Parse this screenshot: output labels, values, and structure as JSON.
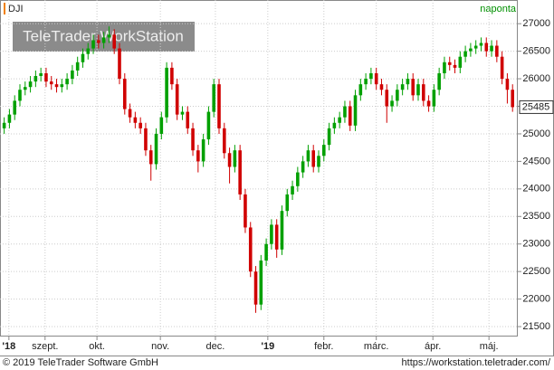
{
  "chart_data": {
    "type": "candlestick",
    "symbol": "DJI",
    "interval": "naponta",
    "watermark": "TeleTrader WorkStation",
    "footer_left": "© 2019 TeleTrader Software GmbH",
    "footer_right": "https://workstation.teletrader.com/",
    "up_color": "#00a000",
    "down_color": "#d00000",
    "grid": true,
    "xlim": [
      -0.8,
      98
    ],
    "ylim": [
      21320,
      27430
    ],
    "xticks": [
      {
        "value": 0.9,
        "label": "'18"
      },
      {
        "value": 7.8,
        "label": "szept."
      },
      {
        "value": 17.7,
        "label": "okt."
      },
      {
        "value": 29.8,
        "label": "nov."
      },
      {
        "value": 40.3,
        "label": "dec."
      },
      {
        "value": 50.3,
        "label": "'19"
      },
      {
        "value": 61,
        "label": "febr."
      },
      {
        "value": 71,
        "label": "márc."
      },
      {
        "value": 81.8,
        "label": "ápr."
      },
      {
        "value": 92.5,
        "label": "máj."
      }
    ],
    "yticks": [
      21500,
      22000,
      22500,
      23000,
      23500,
      24000,
      24500,
      25000,
      25500,
      26000,
      26500,
      27000
    ],
    "candles": [
      [
        25100,
        25300,
        25000,
        25200
      ],
      [
        25200,
        25450,
        25100,
        25350
      ],
      [
        25350,
        25700,
        25250,
        25600
      ],
      [
        25600,
        25900,
        25500,
        25800
      ],
      [
        25800,
        25950,
        25700,
        25850
      ],
      [
        25850,
        26050,
        25750,
        25950
      ],
      [
        25950,
        26150,
        25850,
        26050
      ],
      [
        26050,
        26200,
        25950,
        26100
      ],
      [
        26100,
        26200,
        25850,
        25950
      ],
      [
        25950,
        26050,
        25800,
        25900
      ],
      [
        25900,
        26000,
        25750,
        25850
      ],
      [
        25850,
        26000,
        25750,
        25900
      ],
      [
        25900,
        26100,
        25800,
        26000
      ],
      [
        26000,
        26250,
        25900,
        26150
      ],
      [
        26150,
        26400,
        26050,
        26300
      ],
      [
        26300,
        26550,
        26200,
        26450
      ],
      [
        26450,
        26650,
        26350,
        26550
      ],
      [
        26550,
        26800,
        26450,
        26700
      ],
      [
        26700,
        26800,
        26550,
        26650
      ],
      [
        26650,
        26850,
        26550,
        26750
      ],
      [
        26750,
        26950,
        26650,
        26800
      ],
      [
        26800,
        26900,
        26450,
        26550
      ],
      [
        26550,
        26650,
        25900,
        26000
      ],
      [
        26000,
        26100,
        25350,
        25450
      ],
      [
        25450,
        25550,
        25200,
        25300
      ],
      [
        25300,
        25400,
        25100,
        25200
      ],
      [
        25200,
        25300,
        25000,
        25100
      ],
      [
        25100,
        25200,
        24600,
        24700
      ],
      [
        24700,
        24800,
        24150,
        24450
      ],
      [
        24450,
        25100,
        24350,
        25000
      ],
      [
        25000,
        25400,
        24900,
        25300
      ],
      [
        25300,
        26300,
        25200,
        26200
      ],
      [
        26200,
        26300,
        25800,
        25900
      ],
      [
        25900,
        26000,
        25250,
        25350
      ],
      [
        25350,
        25500,
        25250,
        25400
      ],
      [
        25400,
        25500,
        25000,
        25100
      ],
      [
        25100,
        25200,
        24600,
        24700
      ],
      [
        24700,
        24800,
        24300,
        24500
      ],
      [
        24500,
        25000,
        24400,
        24900
      ],
      [
        24900,
        25500,
        24800,
        25400
      ],
      [
        25400,
        26000,
        25300,
        25900
      ],
      [
        25900,
        26000,
        25000,
        25100
      ],
      [
        25100,
        25200,
        24550,
        24650
      ],
      [
        24650,
        24750,
        24100,
        24400
      ],
      [
        24400,
        24800,
        24300,
        24700
      ],
      [
        24700,
        24800,
        23800,
        23900
      ],
      [
        23900,
        24000,
        23200,
        23300
      ],
      [
        23300,
        23400,
        22400,
        22500
      ],
      [
        22500,
        22600,
        21750,
        21900
      ],
      [
        21900,
        22800,
        21800,
        22700
      ],
      [
        22700,
        23100,
        22600,
        23000
      ],
      [
        23000,
        23450,
        22900,
        23350
      ],
      [
        23350,
        23450,
        22750,
        22900
      ],
      [
        22900,
        23700,
        22800,
        23600
      ],
      [
        23600,
        24000,
        23500,
        23900
      ],
      [
        23900,
        24150,
        23800,
        24050
      ],
      [
        24050,
        24400,
        23950,
        24300
      ],
      [
        24300,
        24600,
        24200,
        24500
      ],
      [
        24500,
        24800,
        24400,
        24700
      ],
      [
        24700,
        24800,
        24300,
        24400
      ],
      [
        24400,
        24700,
        24300,
        24600
      ],
      [
        24600,
        24900,
        24500,
        24800
      ],
      [
        24800,
        25200,
        24700,
        25100
      ],
      [
        25100,
        25300,
        25000,
        25200
      ],
      [
        25200,
        25400,
        25100,
        25300
      ],
      [
        25300,
        25600,
        25200,
        25500
      ],
      [
        25500,
        25600,
        25050,
        25150
      ],
      [
        25150,
        25800,
        25050,
        25700
      ],
      [
        25700,
        26000,
        25600,
        25900
      ],
      [
        25900,
        26100,
        25800,
        26000
      ],
      [
        26000,
        26200,
        25900,
        26100
      ],
      [
        26100,
        26200,
        25800,
        25900
      ],
      [
        25900,
        26000,
        25700,
        25800
      ],
      [
        25800,
        25900,
        25200,
        25500
      ],
      [
        25500,
        25700,
        25400,
        25600
      ],
      [
        25600,
        25900,
        25500,
        25800
      ],
      [
        25800,
        26000,
        25700,
        25900
      ],
      [
        25900,
        26100,
        25800,
        26000
      ],
      [
        26000,
        26100,
        25600,
        25700
      ],
      [
        25700,
        26000,
        25600,
        25900
      ],
      [
        25900,
        26000,
        25500,
        25600
      ],
      [
        25600,
        25700,
        25400,
        25500
      ],
      [
        25500,
        25900,
        25400,
        25800
      ],
      [
        25800,
        26200,
        25700,
        26100
      ],
      [
        26100,
        26400,
        26000,
        26300
      ],
      [
        26300,
        26400,
        26150,
        26250
      ],
      [
        26250,
        26350,
        26100,
        26200
      ],
      [
        26200,
        26500,
        26100,
        26400
      ],
      [
        26400,
        26600,
        26300,
        26500
      ],
      [
        26500,
        26650,
        26400,
        26550
      ],
      [
        26550,
        26700,
        26450,
        26600
      ],
      [
        26600,
        26750,
        26500,
        26650
      ],
      [
        26650,
        26750,
        26400,
        26500
      ],
      [
        26500,
        26700,
        26400,
        26600
      ],
      [
        26600,
        26700,
        26300,
        26400
      ],
      [
        26400,
        26500,
        25900,
        26000
      ],
      [
        26000,
        26100,
        25550,
        25800
      ],
      [
        25800,
        25900,
        25400,
        25485
      ]
    ]
  }
}
